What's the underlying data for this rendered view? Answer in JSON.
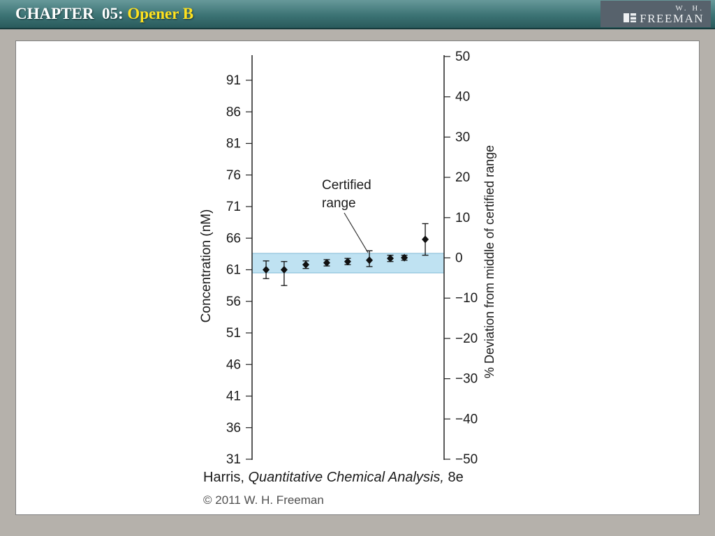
{
  "header": {
    "chapter_label": "CHAPTER  05: ",
    "title": "Opener B",
    "logo": {
      "line1": "W. H.",
      "line2": "FREEMAN"
    }
  },
  "slide": {
    "caption": {
      "prefix": "Harris, ",
      "book_title": "Quantitative Chemical Analysis,",
      "suffix": " 8e"
    },
    "copyright": "© 2011 W. H. Freeman"
  },
  "chart_data": {
    "type": "scatter",
    "title": "",
    "left_axis": {
      "label": "Concentration (nM)",
      "range": [
        31,
        91
      ],
      "ticks": [
        91,
        86,
        81,
        76,
        71,
        66,
        61,
        56,
        51,
        46,
        41,
        36,
        31
      ]
    },
    "right_axis": {
      "label": "% Deviation from middle of certified range",
      "range": [
        -50,
        50
      ],
      "ticks": [
        50,
        40,
        30,
        20,
        10,
        0,
        -10,
        -20,
        -30,
        -40,
        -50
      ]
    },
    "certified_range_nM": [
      60.5,
      63.6
    ],
    "band_color": "#bfe2f2",
    "band_edge_color": "#7fb9d6",
    "point_color": "#111111",
    "annotation": {
      "line1": "Certified",
      "line2": "range"
    },
    "points": [
      {
        "x_frac": 0.073,
        "y": 61.0,
        "lo": 59.6,
        "hi": 62.4
      },
      {
        "x_frac": 0.167,
        "y": 61.0,
        "lo": 58.5,
        "hi": 62.3
      },
      {
        "x_frac": 0.28,
        "y": 61.8,
        "lo": 61.2,
        "hi": 62.4
      },
      {
        "x_frac": 0.389,
        "y": 62.1,
        "lo": 61.6,
        "hi": 62.6
      },
      {
        "x_frac": 0.498,
        "y": 62.3,
        "lo": 61.8,
        "hi": 62.8
      },
      {
        "x_frac": 0.611,
        "y": 62.5,
        "lo": 61.5,
        "hi": 64.0
      },
      {
        "x_frac": 0.72,
        "y": 62.8,
        "lo": 62.3,
        "hi": 63.3
      },
      {
        "x_frac": 0.793,
        "y": 62.9,
        "lo": 62.5,
        "hi": 63.3
      },
      {
        "x_frac": 0.902,
        "y": 65.8,
        "lo": 63.3,
        "hi": 68.3
      }
    ]
  }
}
